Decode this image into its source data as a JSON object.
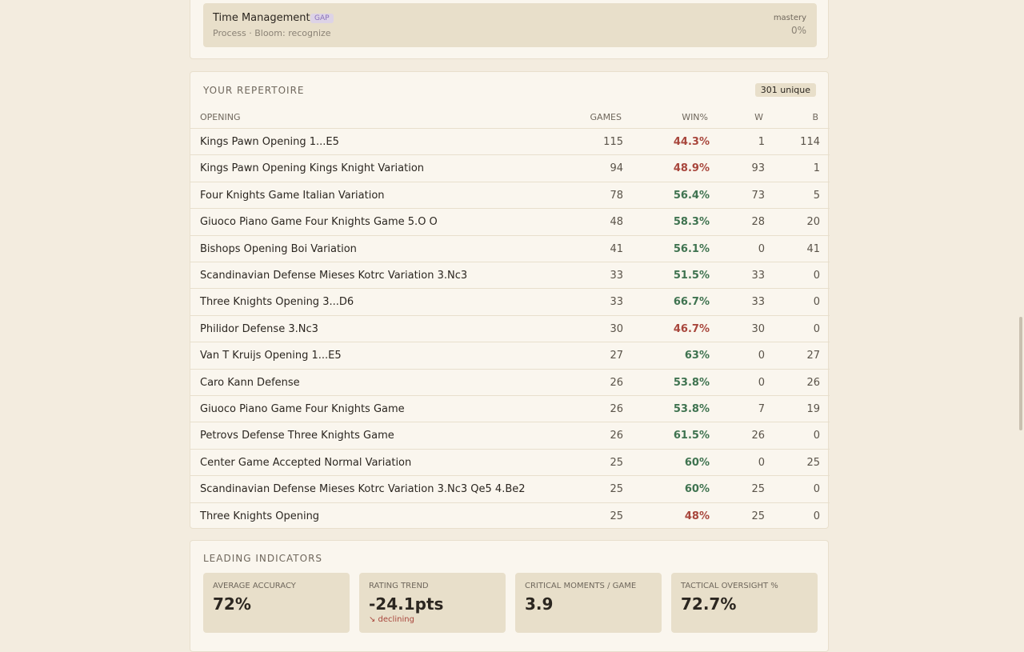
{
  "goal_card": {
    "title": "Time Management",
    "tag": "GAP",
    "meta": "Process · Bloom: recognize",
    "mastery_label": "mastery",
    "mastery_value": "0%"
  },
  "repertoire": {
    "title": "YOUR REPERTOIRE",
    "badge": "301 unique",
    "columns": [
      "OPENING",
      "GAMES",
      "WIN%",
      "W",
      "B"
    ],
    "rows": [
      [
        "Kings Pawn Opening 1...E5",
        "115",
        "44.3%",
        "1",
        "114"
      ],
      [
        "Kings Pawn Opening Kings Knight Variation",
        "94",
        "48.9%",
        "93",
        "1"
      ],
      [
        "Four Knights Game Italian Variation",
        "78",
        "56.4%",
        "73",
        "5"
      ],
      [
        "Giuoco Piano Game Four Knights Game 5.O O",
        "48",
        "58.3%",
        "28",
        "20"
      ],
      [
        "Bishops Opening Boi Variation",
        "41",
        "56.1%",
        "0",
        "41"
      ],
      [
        "Scandinavian Defense Mieses Kotrc Variation 3.Nc3",
        "33",
        "51.5%",
        "33",
        "0"
      ],
      [
        "Three Knights Opening 3...D6",
        "33",
        "66.7%",
        "33",
        "0"
      ],
      [
        "Philidor Defense 3.Nc3",
        "30",
        "46.7%",
        "30",
        "0"
      ],
      [
        "Van T Kruijs Opening 1...E5",
        "27",
        "63%",
        "0",
        "27"
      ],
      [
        "Caro Kann Defense",
        "26",
        "53.8%",
        "0",
        "26"
      ],
      [
        "Giuoco Piano Game Four Knights Game",
        "26",
        "53.8%",
        "7",
        "19"
      ],
      [
        "Petrovs Defense Three Knights Game",
        "26",
        "61.5%",
        "26",
        "0"
      ],
      [
        "Center Game Accepted Normal Variation",
        "25",
        "60%",
        "0",
        "25"
      ],
      [
        "Scandinavian Defense Mieses Kotrc Variation 3.Nc3 Qe5 4.Be2",
        "25",
        "60%",
        "25",
        "0"
      ],
      [
        "Three Knights Opening",
        "25",
        "48%",
        "25",
        "0"
      ]
    ]
  },
  "indicators": {
    "title": "LEADING INDICATORS",
    "cards": [
      {
        "label": "AVERAGE ACCURACY",
        "value": "72%"
      },
      {
        "label": "RATING TREND",
        "value": "-24.1pts",
        "note": "↘ declining"
      },
      {
        "label": "CRITICAL MOMENTS / GAME",
        "value": "3.9"
      },
      {
        "label": "TACTICAL OVERSIGHT %",
        "value": "72.7%"
      }
    ]
  }
}
